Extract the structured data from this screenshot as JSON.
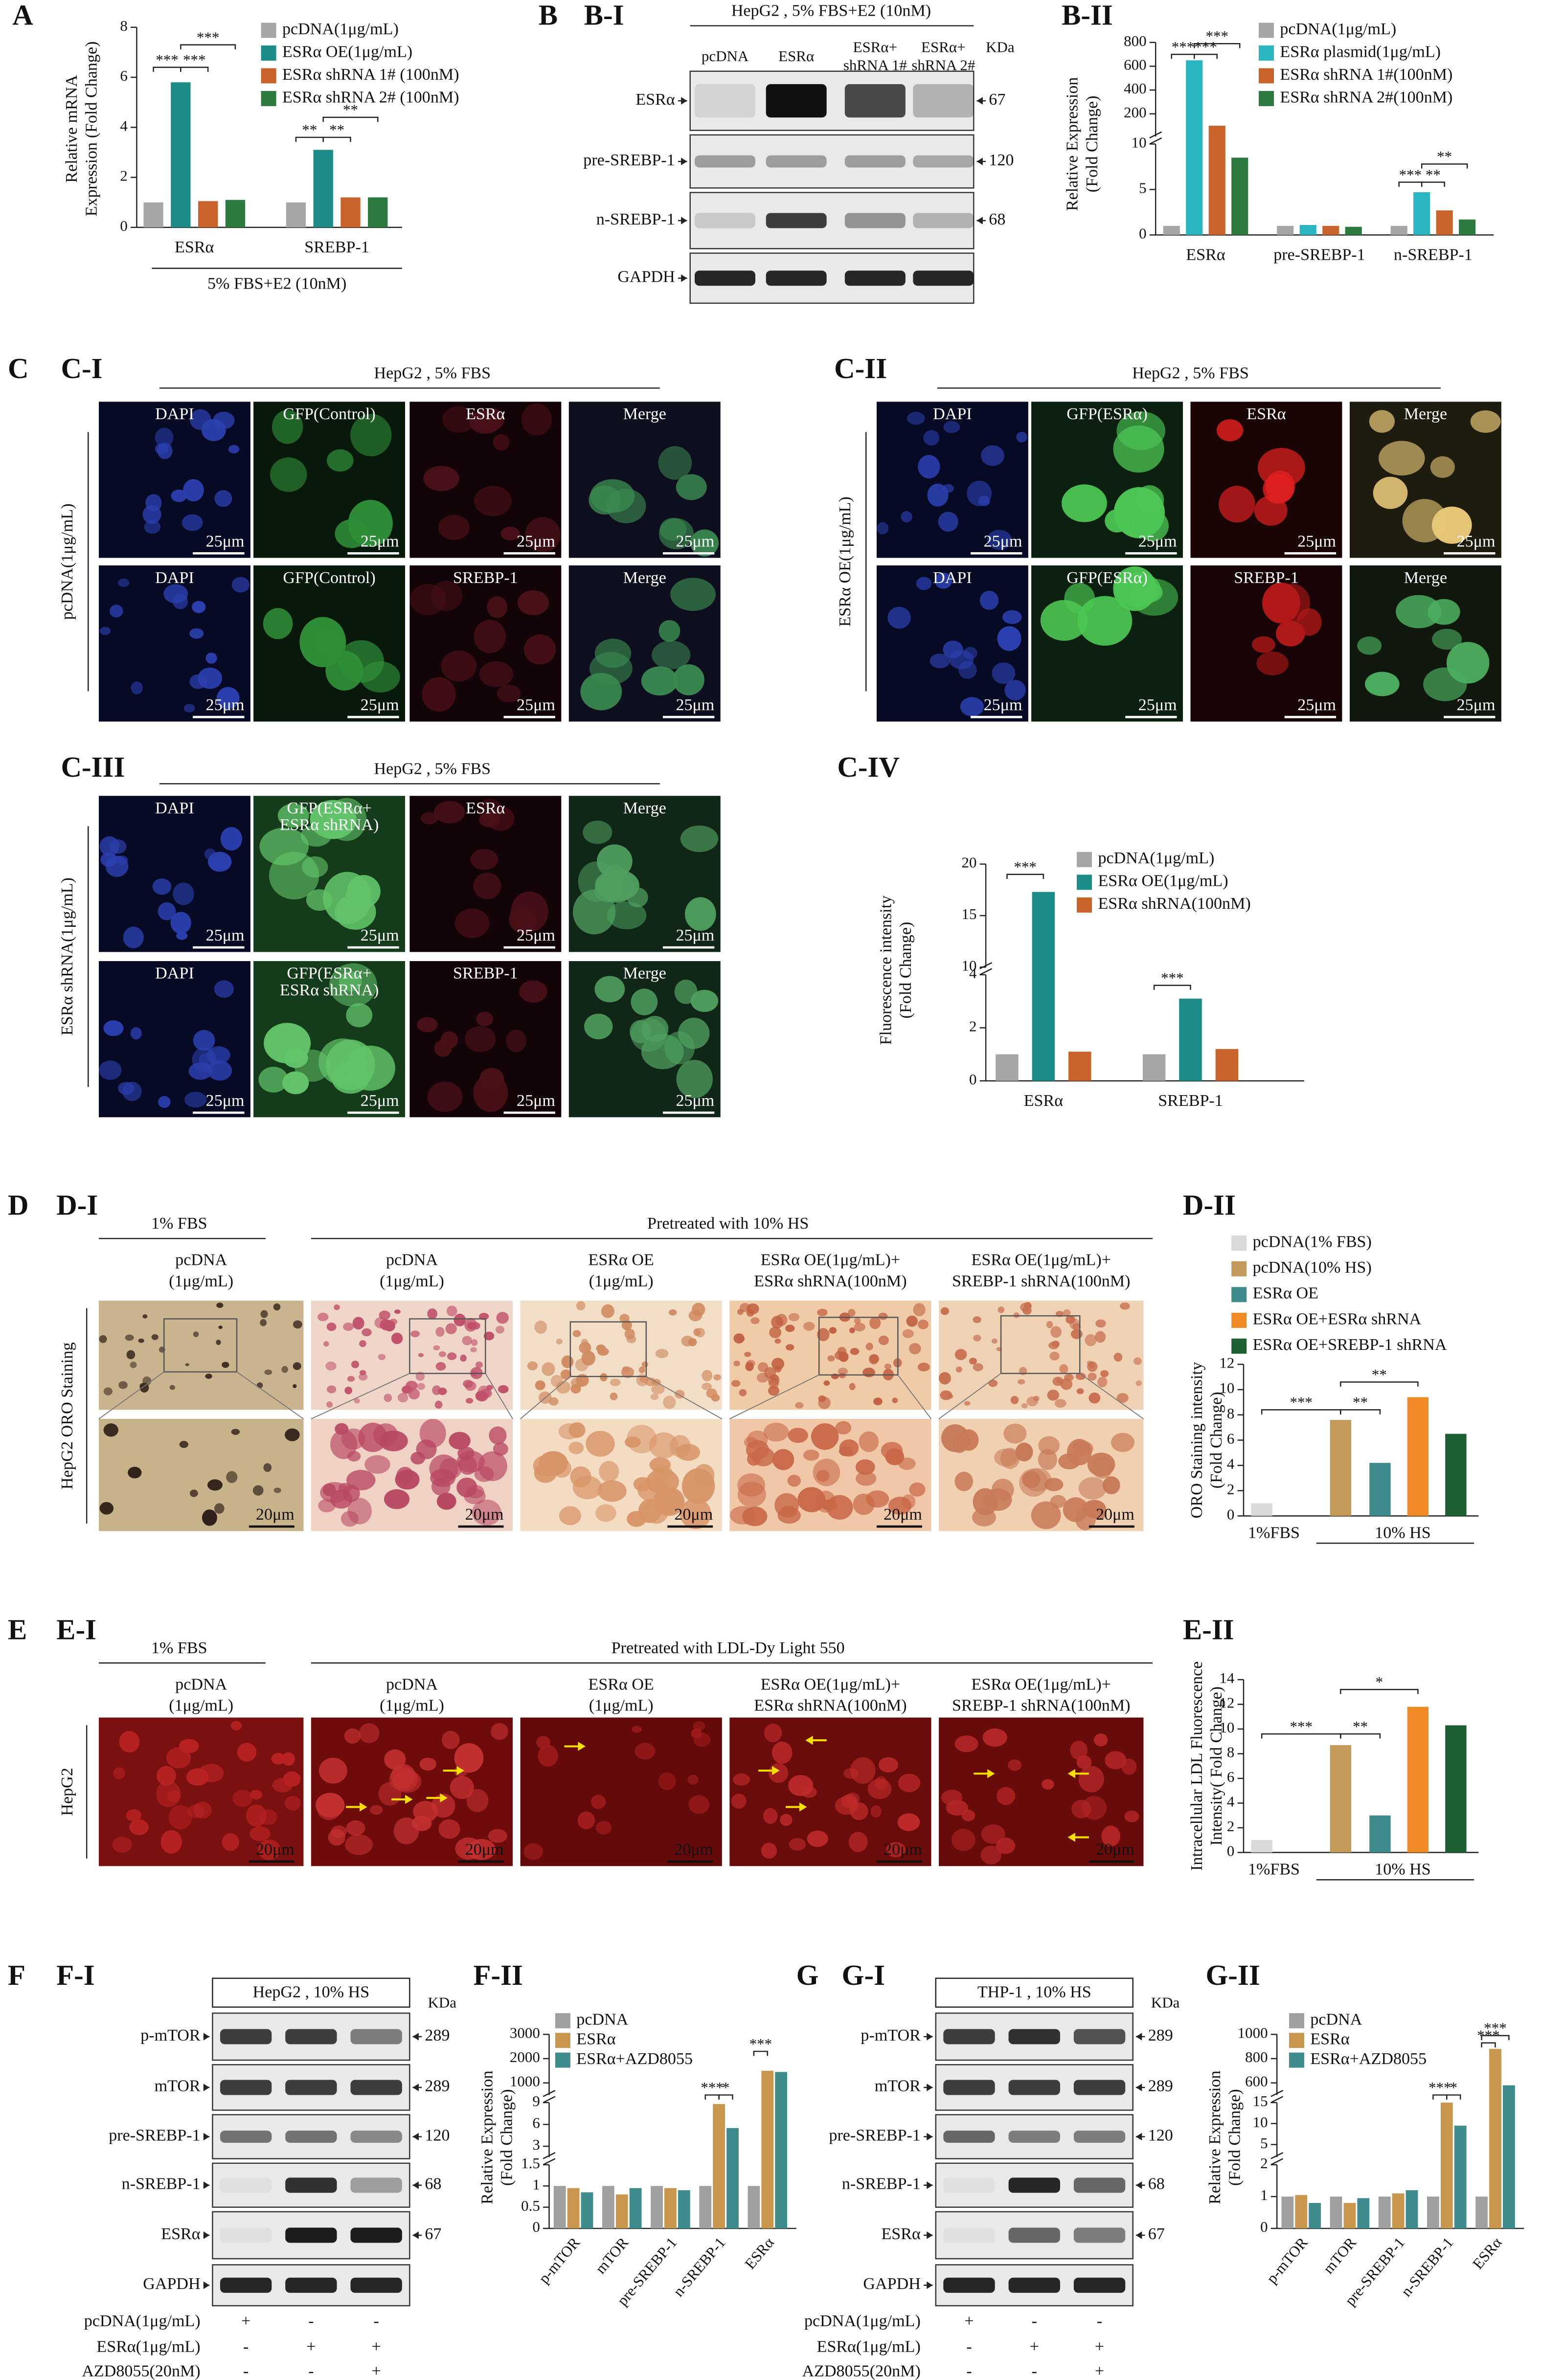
{
  "chart_data": [
    {
      "type": "bar",
      "ylabel": [
        "Relative mRNA",
        "Expression (Fold Change)"
      ],
      "categories": [
        "ESRα",
        "SREBP-1"
      ],
      "group_label": "5% FBS+E2 (10nM)",
      "series": [
        {
          "name": "pcDNA(1μg/mL)",
          "color": "#a6a6a6",
          "values": [
            1,
            1
          ]
        },
        {
          "name": "ESRα OE(1μg/mL)",
          "color": "#1b8c87",
          "values": [
            5.8,
            3.1
          ]
        },
        {
          "name": "ESRα shRNA 1# (100nM)",
          "color": "#c9632b",
          "values": [
            1.05,
            1.2
          ]
        },
        {
          "name": "ESRα shRNA 2# (100nM)",
          "color": "#2c7a3f",
          "values": [
            1.1,
            1.2
          ]
        }
      ],
      "ylim": [
        0,
        8
      ],
      "yticks": [
        0,
        2,
        4,
        6,
        8
      ],
      "annotations": [
        "***",
        "***",
        "***",
        "**",
        "**",
        "**"
      ]
    },
    {
      "type": "bar",
      "ylabel": [
        "Relative Expression",
        "(Fold Change)"
      ],
      "categories": [
        "ESRα",
        "pre-SREBP-1",
        "n-SREBP-1"
      ],
      "series": [
        {
          "name": "pcDNA(1μg/mL)",
          "color": "#a6a6a6",
          "values": [
            1,
            1,
            1
          ]
        },
        {
          "name": "ESRα plasmid(1μg/mL)",
          "color": "#29b6c0",
          "values": [
            650,
            1.1,
            4.7
          ]
        },
        {
          "name": "ESRα shRNA 1#(100nM)",
          "color": "#c9632b",
          "values": [
            100,
            1.0,
            2.7
          ]
        },
        {
          "name": "ESRα shRNA 2#(100nM)",
          "color": "#2c7a3f",
          "values": [
            8.5,
            0.9,
            1.7
          ]
        }
      ],
      "segments": [
        {
          "ylim": [
            0,
            10
          ],
          "yticks": [
            0,
            5,
            10
          ]
        },
        {
          "ylim": [
            10,
            800
          ],
          "yticks": [
            200,
            400,
            600,
            800
          ]
        }
      ],
      "annotations": [
        "***",
        "***",
        "***",
        "***",
        "**",
        "**"
      ]
    },
    {
      "type": "bar",
      "ylabel": [
        "Fluorescence intensity",
        "(Fold Change)"
      ],
      "categories": [
        "ESRα",
        "SREBP-1"
      ],
      "series": [
        {
          "name": "pcDNA(1μg/mL)",
          "color": "#a6a6a6",
          "values": [
            1,
            1
          ]
        },
        {
          "name": "ESRα OE(1μg/mL)",
          "color": "#1b8c87",
          "values": [
            17.3,
            3.1
          ]
        },
        {
          "name": "ESRα shRNA(100nM)",
          "color": "#c9632b",
          "values": [
            1.1,
            1.2
          ]
        }
      ],
      "segments": [
        {
          "ylim": [
            0,
            4
          ],
          "yticks": [
            0,
            2,
            4
          ]
        },
        {
          "ylim": [
            10,
            20
          ],
          "yticks": [
            10,
            15,
            20
          ]
        }
      ],
      "annotations": [
        "***",
        "***"
      ]
    },
    {
      "type": "bar",
      "ylabel": [
        "ORO Staining intensity",
        "(Fold Change)"
      ],
      "group_labels": [
        "1%FBS",
        "10% HS"
      ],
      "series": [
        {
          "name": "pcDNA(1% FBS)",
          "color": "#d9d9d9",
          "values": [
            1
          ]
        },
        {
          "name": "pcDNA(10% HS)",
          "color": "#c49a5a",
          "values": [
            7.6
          ]
        },
        {
          "name": "ESRα OE",
          "color": "#3f8a8a",
          "values": [
            4.2
          ]
        },
        {
          "name": "ESRα OE+ESRα shRNA",
          "color": "#f08a24",
          "values": [
            9.4
          ]
        },
        {
          "name": "ESRα OE+SREBP-1 shRNA",
          "color": "#1d5e33",
          "values": [
            6.5
          ]
        }
      ],
      "ylim": [
        0,
        12
      ],
      "yticks": [
        0,
        2,
        4,
        6,
        8,
        10,
        12
      ],
      "annotations": [
        "***",
        "**",
        "**"
      ]
    },
    {
      "type": "bar",
      "ylabel": [
        "Intracellular LDL Fluorescence",
        "Intensity( Fold Change)"
      ],
      "group_labels": [
        "1%FBS",
        "10% HS"
      ],
      "series": [
        {
          "color": "#d9d9d9",
          "values": [
            1
          ]
        },
        {
          "color": "#c49a5a",
          "values": [
            8.7
          ]
        },
        {
          "color": "#3f8a8a",
          "values": [
            3.0
          ]
        },
        {
          "color": "#f08a24",
          "values": [
            11.8
          ]
        },
        {
          "color": "#1d5e33",
          "values": [
            10.3
          ]
        }
      ],
      "ylim": [
        0,
        14
      ],
      "yticks": [
        0,
        2,
        4,
        6,
        8,
        10,
        12,
        14
      ],
      "annotations": [
        "***",
        "**",
        "*"
      ]
    },
    {
      "type": "bar",
      "ylabel": [
        "Relative Expression",
        "(Fold Change)"
      ],
      "categories": [
        "p-mTOR",
        "mTOR",
        "pre-SREBP-1",
        "n-SREBP-1",
        "ESRα"
      ],
      "series": [
        {
          "name": "pcDNA",
          "color": "#a0a0a0",
          "values": [
            1,
            1,
            1,
            1,
            1
          ]
        },
        {
          "name": "ESRα",
          "color": "#c9964d",
          "values": [
            0.95,
            0.8,
            0.95,
            8.8,
            1500
          ]
        },
        {
          "name": "ESRα+AZD8055",
          "color": "#3f8c8c",
          "values": [
            0.85,
            0.95,
            0.9,
            5.5,
            1450
          ]
        }
      ],
      "segments": [
        {
          "ylim": [
            0,
            1.5
          ],
          "yticks": [
            0,
            0.5,
            1,
            1.5
          ]
        },
        {
          "ylim": [
            1.5,
            9
          ],
          "yticks": [
            3,
            6,
            9
          ]
        },
        {
          "ylim": [
            500,
            3000
          ],
          "yticks": [
            1000,
            2000,
            3000
          ]
        }
      ],
      "annotations": [
        "***",
        "*",
        "***"
      ]
    },
    {
      "type": "bar",
      "ylabel": [
        "Relative Expression",
        "(Fold Change)"
      ],
      "categories": [
        "p-mTOR",
        "mTOR",
        "pre-SREBP-1",
        "n-SREBP-1",
        "ESRα"
      ],
      "series": [
        {
          "name": "pcDNA",
          "color": "#a0a0a0",
          "values": [
            1,
            1,
            1,
            1,
            1
          ]
        },
        {
          "name": "ESRα",
          "color": "#c9964d",
          "values": [
            1.05,
            0.8,
            1.1,
            15,
            880
          ]
        },
        {
          "name": "ESRα+AZD8055",
          "color": "#3f8c8c",
          "values": [
            0.8,
            0.95,
            1.2,
            9.5,
            580
          ]
        }
      ],
      "segments": [
        {
          "ylim": [
            0,
            2
          ],
          "yticks": [
            0,
            1,
            2
          ]
        },
        {
          "ylim": [
            2,
            15
          ],
          "yticks": [
            5,
            10,
            15
          ]
        },
        {
          "ylim": [
            500,
            1000
          ],
          "yticks": [
            600,
            800,
            1000
          ]
        }
      ],
      "annotations": [
        "***",
        "*",
        "***",
        "***"
      ]
    }
  ],
  "figure_text": {
    "panel_labels": [
      "A",
      "B",
      "B-I",
      "B-II",
      "C",
      "C-I",
      "C-II",
      "C-III",
      "C-IV",
      "D",
      "D-I",
      "D-II",
      "E",
      "E-I",
      "E-II",
      "F",
      "F-I",
      "F-II",
      "G",
      "G-I",
      "G-II"
    ],
    "blot_B": {
      "header": "HepG2 , 5% FBS+E2 (10nM)",
      "lanes": [
        [
          "pcDNA"
        ],
        [
          "ESRα"
        ],
        [
          "ESRα+",
          "shRNA 1#"
        ],
        [
          "ESRα+",
          "shRNA 2#"
        ]
      ],
      "kda_unit": "KDa",
      "rows": [
        "ESRα",
        "pre-SREBP-1",
        "n-SREBP-1",
        "GAPDH"
      ],
      "kda": [
        67,
        120,
        68
      ]
    },
    "if_C_I": {
      "header": "HepG2 , 5% FBS",
      "row_label": "pcDNA(1μg/mL)",
      "scale": "25μm",
      "tiles": [
        [
          [
            "DAPI"
          ],
          [
            "GFP(Control)"
          ],
          [
            "ESRα"
          ],
          [
            "Merge"
          ]
        ],
        [
          [
            "DAPI"
          ],
          [
            "GFP(Control)"
          ],
          [
            "SREBP-1"
          ],
          [
            "Merge"
          ]
        ]
      ]
    },
    "if_C_II": {
      "header": "HepG2 , 5% FBS",
      "row_label": "ESRα OE(1μg/mL)",
      "scale": "25μm",
      "tiles": [
        [
          [
            "DAPI"
          ],
          [
            "GFP(ESRα)"
          ],
          [
            "ESRα"
          ],
          [
            "Merge"
          ]
        ],
        [
          [
            "DAPI"
          ],
          [
            "GFP(ESRα)"
          ],
          [
            "SREBP-1"
          ],
          [
            "Merge"
          ]
        ]
      ]
    },
    "if_C_III": {
      "header": "HepG2 , 5% FBS",
      "row_label": "ESRα shRNA(1μg/mL)",
      "scale": "25μm",
      "tiles": [
        [
          [
            "DAPI"
          ],
          [
            "GFP(ESRα+",
            "ESRα shRNA)"
          ],
          [
            "ESRα"
          ],
          [
            "Merge"
          ]
        ],
        [
          [
            "DAPI"
          ],
          [
            "GFP(ESRα+",
            "ESRα shRNA)"
          ],
          [
            "SREBP-1"
          ],
          [
            "Merge"
          ]
        ]
      ]
    },
    "oro_D": {
      "headers": [
        "1% FBS",
        "Pretreated with 10% HS"
      ],
      "row_label": "HepG2 ORO Staining",
      "scale": "20μm",
      "columns": [
        [
          "pcDNA",
          "(1μg/mL)"
        ],
        [
          "pcDNA",
          "(1μg/mL)"
        ],
        [
          "ESRα OE",
          "(1μg/mL)"
        ],
        [
          "ESRα OE(1μg/mL)+",
          "ESRα shRNA(100nM)"
        ],
        [
          "ESRα OE(1μg/mL)+",
          "SREBP-1 shRNA(100nM)"
        ]
      ]
    },
    "ldl_E": {
      "headers": [
        "1% FBS",
        "Pretreated with LDL-Dy Light 550"
      ],
      "row_label": "HepG2",
      "scale": "20μm",
      "columns": [
        [
          "pcDNA",
          "(1μg/mL)"
        ],
        [
          "pcDNA",
          "(1μg/mL)"
        ],
        [
          "ESRα OE",
          "(1μg/mL)"
        ],
        [
          "ESRα OE(1μg/mL)+",
          "ESRα shRNA(100nM)"
        ],
        [
          "ESRα OE(1μg/mL)+",
          "SREBP-1 shRNA(100nM)"
        ]
      ]
    },
    "blot_F": {
      "header": "HepG2 , 10% HS",
      "kda_unit": "KDa",
      "rows": [
        "p-mTOR",
        "mTOR",
        "pre-SREBP-1",
        "n-SREBP-1",
        "ESRα",
        "GAPDH"
      ],
      "kda": [
        289,
        289,
        120,
        68,
        67
      ],
      "treatments": [
        {
          "name": "pcDNA(1μg/mL)",
          "signs": [
            "+",
            "-",
            "-"
          ]
        },
        {
          "name": "ESRα(1μg/mL)",
          "signs": [
            "-",
            "+",
            "+"
          ]
        },
        {
          "name": "AZD8055(20nM)",
          "signs": [
            "-",
            "-",
            "+"
          ]
        }
      ]
    },
    "blot_G": {
      "header": "THP-1 , 10% HS",
      "kda_unit": "KDa",
      "rows": [
        "p-mTOR",
        "mTOR",
        "pre-SREBP-1",
        "n-SREBP-1",
        "ESRα",
        "GAPDH"
      ],
      "kda": [
        289,
        289,
        120,
        68,
        67
      ],
      "treatments": [
        {
          "name": "pcDNA(1μg/mL)",
          "signs": [
            "+",
            "-",
            "-"
          ]
        },
        {
          "name": "ESRα(1μg/mL)",
          "signs": [
            "-",
            "+",
            "+"
          ]
        },
        {
          "name": "AZD8055(20nM)",
          "signs": [
            "-",
            "-",
            "+"
          ]
        }
      ]
    }
  }
}
